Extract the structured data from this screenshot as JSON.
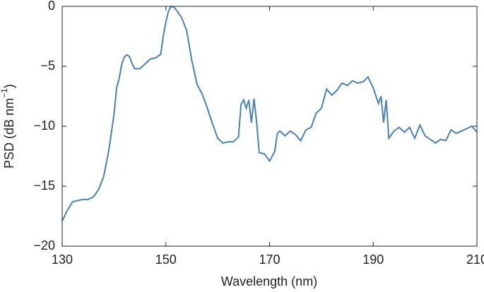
{
  "chart_data": {
    "type": "line",
    "xlabel": "Wavelength (nm)",
    "ylabel": [
      "PSD (dB nm",
      "−1",
      ")"
    ],
    "xlim": [
      130,
      210
    ],
    "xticks": [
      130,
      150,
      170,
      190,
      210
    ],
    "ylim": [
      -20,
      0
    ],
    "yticks": [
      {
        "value": -20,
        "label": "−20"
      },
      {
        "value": -15,
        "label": "−15"
      },
      {
        "value": -10,
        "label": "−10"
      },
      {
        "value": -5,
        "label": "−5"
      },
      0
    ],
    "series": [
      {
        "color": "#4a81b4",
        "x": [
          130,
          131,
          132,
          133,
          134,
          135,
          136,
          137,
          138,
          139,
          140,
          140.5,
          141,
          141.5,
          142,
          142.5,
          143,
          143.5,
          144,
          145,
          146,
          147,
          148,
          149,
          149.5,
          150,
          150.5,
          151,
          151.5,
          152,
          153,
          154,
          155,
          156,
          157,
          158,
          159,
          160,
          161,
          162,
          163,
          164,
          164.5,
          165,
          165.5,
          166,
          166.5,
          167,
          167.5,
          168,
          169,
          170,
          171,
          171.5,
          172,
          173,
          174,
          175,
          176,
          177,
          178,
          179,
          180,
          181,
          182,
          183,
          184,
          185,
          186,
          187,
          188,
          189,
          190,
          191,
          191.5,
          192,
          192.5,
          193,
          194,
          195,
          196,
          197,
          198,
          199,
          200,
          201,
          202,
          203,
          204,
          205,
          206,
          207,
          208,
          209,
          210
        ],
        "values": [
          -17.9,
          -17.0,
          -16.3,
          -16.2,
          -16.1,
          -16.1,
          -15.9,
          -15.3,
          -14.2,
          -12.0,
          -9.0,
          -6.8,
          -6.0,
          -4.8,
          -4.2,
          -4.05,
          -4.2,
          -4.8,
          -5.2,
          -5.2,
          -4.8,
          -4.4,
          -4.3,
          -4.0,
          -2.5,
          -1.3,
          -0.4,
          0.0,
          -0.05,
          -0.3,
          -0.9,
          -2.0,
          -4.5,
          -6.5,
          -7.3,
          -8.5,
          -9.8,
          -11.0,
          -11.4,
          -11.3,
          -11.3,
          -10.9,
          -8.2,
          -7.8,
          -8.5,
          -7.8,
          -9.7,
          -7.7,
          -9.6,
          -12.2,
          -12.3,
          -12.9,
          -12.1,
          -10.6,
          -10.4,
          -10.8,
          -10.4,
          -10.7,
          -11.2,
          -10.3,
          -10.1,
          -8.9,
          -8.5,
          -6.9,
          -7.4,
          -7.0,
          -6.4,
          -6.6,
          -6.2,
          -6.4,
          -6.3,
          -5.9,
          -6.8,
          -8.1,
          -7.5,
          -9.7,
          -7.8,
          -11.0,
          -10.4,
          -10.1,
          -10.5,
          -10.1,
          -11.0,
          -9.9,
          -10.8,
          -11.1,
          -11.4,
          -11.1,
          -11.2,
          -10.3,
          -10.6,
          -10.4,
          -10.2,
          -10.0,
          -10.5
        ]
      }
    ]
  }
}
